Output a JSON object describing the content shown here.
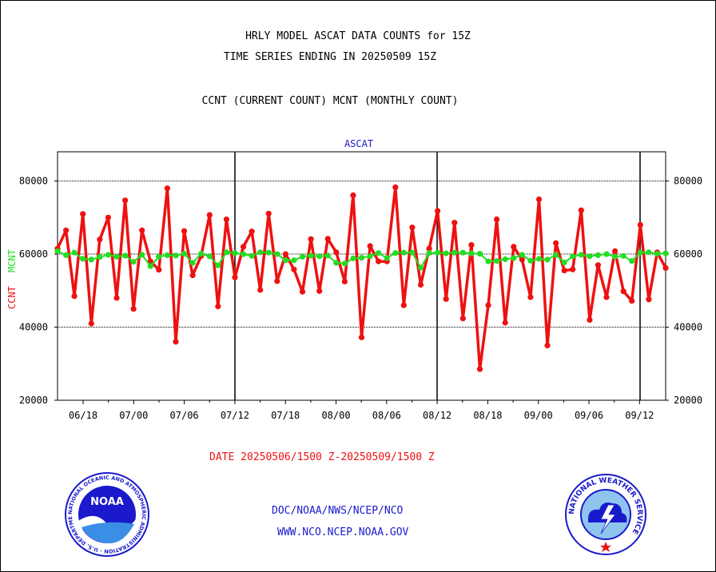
{
  "titles": {
    "line1": "HRLY MODEL ASCAT DATA COUNTS for 15Z",
    "line2": "TIME SERIES ENDING IN 20250509 15Z",
    "line3": "CCNT (CURRENT COUNT) MCNT (MONTHLY COUNT)"
  },
  "footer": {
    "date_range": "DATE 20250506/1500 Z-20250509/1500 Z",
    "org": "DOC/NOAA/NWS/NCEP/NCO",
    "url": "WWW.NCO.NCEP.NOAA.GOV",
    "noaa_logo_text": "NOAA",
    "nws_logo_text": "NATIONAL WEATHER SERVICE",
    "noaa_ring_text": "NATIONAL OCEANIC AND ATMOSPHERIC ADMINISTRATION · U.S. DEPARTMENT OF COMMERCE"
  },
  "colors": {
    "ccnt": "#ee1111",
    "mcnt": "#22dd22",
    "plot_title": "#1a1acc",
    "date_text": "#ee1111",
    "grid": "#000000"
  },
  "chart_data": {
    "type": "line",
    "title": "ASCAT",
    "ylabel_series": [
      "CCNT",
      "MCNT"
    ],
    "ylim": [
      20000,
      88000
    ],
    "yticks": [
      20000,
      40000,
      60000,
      80000
    ],
    "ytick_labels": [
      "20000",
      "40000",
      "60000",
      "80000"
    ],
    "xtick_labels": [
      "06/18",
      "07/00",
      "07/06",
      "07/12",
      "07/18",
      "08/00",
      "08/06",
      "08/12",
      "08/18",
      "09/00",
      "09/06",
      "09/12"
    ],
    "grid": true,
    "series": [
      {
        "name": "CCNT",
        "values": [
          61500,
          66500,
          48500,
          71000,
          41000,
          64000,
          70000,
          48000,
          74700,
          45000,
          66500,
          58000,
          55700,
          78000,
          36000,
          66300,
          54200,
          59500,
          70700,
          45700,
          69500,
          53600,
          62000,
          66200,
          50200,
          71100,
          52600,
          60000,
          55800,
          49700,
          64100,
          49900,
          64200,
          60500,
          52500,
          76100,
          37200,
          62200,
          58000,
          58000,
          78300,
          46000,
          67300,
          51600,
          61500,
          71800,
          47700,
          68600,
          42400,
          62500,
          28500,
          46000,
          69500,
          41200,
          62000,
          58500,
          48200,
          75000,
          35000,
          63000,
          55500,
          55800,
          72000,
          42000,
          57000,
          48200,
          60800,
          49800,
          47200,
          68000,
          47600,
          60500,
          56200
        ],
        "color": "#ee1111"
      },
      {
        "name": "MCNT",
        "values": [
          60800,
          59700,
          60400,
          58700,
          58500,
          59200,
          59800,
          59300,
          59600,
          57900,
          59800,
          56700,
          59300,
          59700,
          59600,
          60100,
          57600,
          60100,
          59400,
          56900,
          60500,
          60300,
          60000,
          59500,
          60500,
          60400,
          60000,
          58300,
          58300,
          59300,
          59600,
          59400,
          59600,
          57600,
          57400,
          58800,
          59000,
          59400,
          60300,
          58900,
          60300,
          60400,
          60400,
          56300,
          60300,
          60400,
          60200,
          60400,
          60400,
          60200,
          60100,
          58000,
          58100,
          58600,
          58900,
          59800,
          58200,
          58700,
          58500,
          59800,
          57700,
          59400,
          59800,
          59400,
          59700,
          60000,
          59300,
          59500,
          58100,
          60400,
          60500,
          60100,
          60200
        ],
        "color": "#22dd22"
      }
    ]
  }
}
